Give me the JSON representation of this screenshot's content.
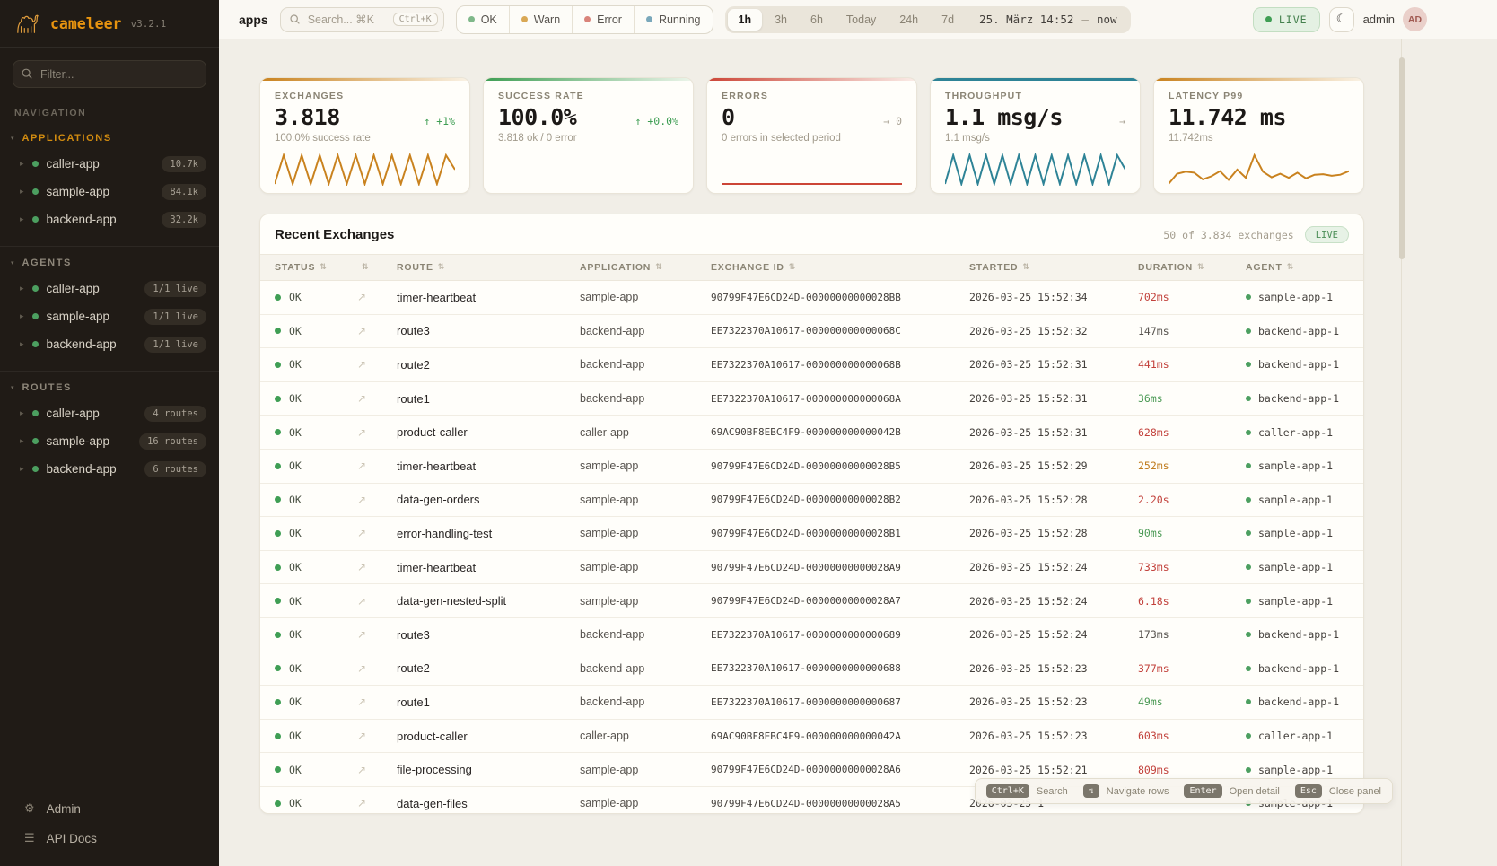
{
  "brand": {
    "name": "cameleer",
    "version": "v3.2.1"
  },
  "sidebar": {
    "filter_placeholder": "Filter...",
    "nav_label": "NAVIGATION",
    "sections": [
      {
        "title": "APPLICATIONS",
        "accent": true,
        "items": [
          {
            "label": "caller-app",
            "badge": "10.7k"
          },
          {
            "label": "sample-app",
            "badge": "84.1k"
          },
          {
            "label": "backend-app",
            "badge": "32.2k"
          }
        ]
      },
      {
        "title": "AGENTS",
        "accent": false,
        "items": [
          {
            "label": "caller-app",
            "badge": "1/1 live"
          },
          {
            "label": "sample-app",
            "badge": "1/1 live"
          },
          {
            "label": "backend-app",
            "badge": "1/1 live"
          }
        ]
      },
      {
        "title": "ROUTES",
        "accent": false,
        "items": [
          {
            "label": "caller-app",
            "badge": "4 routes"
          },
          {
            "label": "sample-app",
            "badge": "16 routes"
          },
          {
            "label": "backend-app",
            "badge": "6 routes"
          }
        ]
      }
    ],
    "footer": [
      {
        "label": "Admin",
        "icon": "gear-icon",
        "glyph": "⚙"
      },
      {
        "label": "API Docs",
        "icon": "docs-icon",
        "glyph": "☰"
      }
    ]
  },
  "topbar": {
    "context_label": "apps",
    "search": {
      "placeholder": "Search... ⌘K",
      "shortcut": "Ctrl+K"
    },
    "status_filters": [
      {
        "label": "OK",
        "color": "#7fb88a"
      },
      {
        "label": "Warn",
        "color": "#d9a855"
      },
      {
        "label": "Error",
        "color": "#d9837a"
      },
      {
        "label": "Running",
        "color": "#7aa8bb"
      }
    ],
    "time_ranges": [
      "1h",
      "3h",
      "6h",
      "Today",
      "24h",
      "7d"
    ],
    "active_range": "1h",
    "date_from": "25. März 14:52",
    "date_sep": "—",
    "date_to": "now",
    "live_label": "LIVE",
    "theme_icon": "☾",
    "user_name": "admin",
    "user_initials": "AD"
  },
  "stat_cards": [
    {
      "label": "EXCHANGES",
      "value": "3.818",
      "delta": "↑ +1%",
      "delta_color": "#3f9e54",
      "subtitle": "100.0% success rate",
      "accent": "#c9821e",
      "bar": "fade",
      "sparkline": [
        1,
        9,
        1,
        9,
        1,
        9,
        1,
        9,
        1,
        9,
        1,
        9,
        1,
        9,
        1,
        9,
        1,
        9,
        1,
        9,
        5
      ]
    },
    {
      "label": "SUCCESS RATE",
      "value": "100.0%",
      "delta": "↑ +0.0%",
      "delta_color": "#3f9e54",
      "subtitle": "3.818 ok / 0 error",
      "accent": "#3f9e54",
      "bar": "fade",
      "sparkline": null
    },
    {
      "label": "ERRORS",
      "value": "0",
      "delta": "→ 0",
      "delta_color": "#a8a193",
      "subtitle": "0 errors in selected period",
      "accent": "#cc4537",
      "bar": "fade",
      "sparkline": [
        0,
        0
      ]
    },
    {
      "label": "THROUGHPUT",
      "value": "1.1 msg/s",
      "delta": "→",
      "delta_color": "#a8a193",
      "subtitle": "1.1 msg/s",
      "accent": "#2e8396",
      "bar": "solid",
      "sparkline": [
        1,
        9,
        1,
        9,
        1,
        9,
        1,
        9,
        1,
        9,
        1,
        9,
        1,
        9,
        1,
        9,
        1,
        9,
        1,
        9,
        1,
        9,
        5
      ]
    },
    {
      "label": "LATENCY P99",
      "value": "11.742 ms",
      "delta": "",
      "delta_color": "#a8a193",
      "subtitle": "11.742ms",
      "accent": "#c9821e",
      "bar": "fade",
      "sparkline": [
        2.0,
        4.0,
        4.4,
        4.2,
        2.9,
        3.5,
        4.5,
        2.8,
        4.8,
        3.2,
        7.6,
        4.4,
        3.3,
        4.0,
        3.2,
        4.2,
        3.1,
        3.8,
        3.9,
        3.6,
        3.8,
        4.5
      ]
    }
  ],
  "table": {
    "title": "Recent Exchanges",
    "meta": "50 of 3.834 exchanges",
    "live_label": "LIVE",
    "columns": [
      "STATUS",
      "",
      "ROUTE",
      "APPLICATION",
      "EXCHANGE ID",
      "STARTED",
      "DURATION",
      "AGENT"
    ],
    "sort_glyph": "⇅",
    "trace_glyph": "↗",
    "duration_colors": {
      "bad": "#c2413b",
      "warn": "#c07c1f",
      "good": "#4b9a55",
      "neutral": "#57534e"
    },
    "rows": [
      {
        "status": "OK",
        "route": "timer-heartbeat",
        "application": "sample-app",
        "exchange_id": "90799F47E6CD24D-00000000000028BB",
        "started": "2026-03-25 15:52:34",
        "duration": "702ms",
        "duration_level": "bad",
        "agent": "sample-app-1"
      },
      {
        "status": "OK",
        "route": "route3",
        "application": "backend-app",
        "exchange_id": "EE7322370A10617-000000000000068C",
        "started": "2026-03-25 15:52:32",
        "duration": "147ms",
        "duration_level": "neutral",
        "agent": "backend-app-1"
      },
      {
        "status": "OK",
        "route": "route2",
        "application": "backend-app",
        "exchange_id": "EE7322370A10617-000000000000068B",
        "started": "2026-03-25 15:52:31",
        "duration": "441ms",
        "duration_level": "bad",
        "agent": "backend-app-1"
      },
      {
        "status": "OK",
        "route": "route1",
        "application": "backend-app",
        "exchange_id": "EE7322370A10617-000000000000068A",
        "started": "2026-03-25 15:52:31",
        "duration": "36ms",
        "duration_level": "good",
        "agent": "backend-app-1"
      },
      {
        "status": "OK",
        "route": "product-caller",
        "application": "caller-app",
        "exchange_id": "69AC90BF8EBC4F9-000000000000042B",
        "started": "2026-03-25 15:52:31",
        "duration": "628ms",
        "duration_level": "bad",
        "agent": "caller-app-1"
      },
      {
        "status": "OK",
        "route": "timer-heartbeat",
        "application": "sample-app",
        "exchange_id": "90799F47E6CD24D-00000000000028B5",
        "started": "2026-03-25 15:52:29",
        "duration": "252ms",
        "duration_level": "warn",
        "agent": "sample-app-1"
      },
      {
        "status": "OK",
        "route": "data-gen-orders",
        "application": "sample-app",
        "exchange_id": "90799F47E6CD24D-00000000000028B2",
        "started": "2026-03-25 15:52:28",
        "duration": "2.20s",
        "duration_level": "bad",
        "agent": "sample-app-1"
      },
      {
        "status": "OK",
        "route": "error-handling-test",
        "application": "sample-app",
        "exchange_id": "90799F47E6CD24D-00000000000028B1",
        "started": "2026-03-25 15:52:28",
        "duration": "90ms",
        "duration_level": "good",
        "agent": "sample-app-1"
      },
      {
        "status": "OK",
        "route": "timer-heartbeat",
        "application": "sample-app",
        "exchange_id": "90799F47E6CD24D-00000000000028A9",
        "started": "2026-03-25 15:52:24",
        "duration": "733ms",
        "duration_level": "bad",
        "agent": "sample-app-1"
      },
      {
        "status": "OK",
        "route": "data-gen-nested-split",
        "application": "sample-app",
        "exchange_id": "90799F47E6CD24D-00000000000028A7",
        "started": "2026-03-25 15:52:24",
        "duration": "6.18s",
        "duration_level": "bad",
        "agent": "sample-app-1"
      },
      {
        "status": "OK",
        "route": "route3",
        "application": "backend-app",
        "exchange_id": "EE7322370A10617-0000000000000689",
        "started": "2026-03-25 15:52:24",
        "duration": "173ms",
        "duration_level": "neutral",
        "agent": "backend-app-1"
      },
      {
        "status": "OK",
        "route": "route2",
        "application": "backend-app",
        "exchange_id": "EE7322370A10617-0000000000000688",
        "started": "2026-03-25 15:52:23",
        "duration": "377ms",
        "duration_level": "bad",
        "agent": "backend-app-1"
      },
      {
        "status": "OK",
        "route": "route1",
        "application": "backend-app",
        "exchange_id": "EE7322370A10617-0000000000000687",
        "started": "2026-03-25 15:52:23",
        "duration": "49ms",
        "duration_level": "good",
        "agent": "backend-app-1"
      },
      {
        "status": "OK",
        "route": "product-caller",
        "application": "caller-app",
        "exchange_id": "69AC90BF8EBC4F9-000000000000042A",
        "started": "2026-03-25 15:52:23",
        "duration": "603ms",
        "duration_level": "bad",
        "agent": "caller-app-1"
      },
      {
        "status": "OK",
        "route": "file-processing",
        "application": "sample-app",
        "exchange_id": "90799F47E6CD24D-00000000000028A6",
        "started": "2026-03-25 15:52:21",
        "duration": "809ms",
        "duration_level": "bad",
        "agent": "sample-app-1"
      },
      {
        "status": "OK",
        "route": "data-gen-files",
        "application": "sample-app",
        "exchange_id": "90799F47E6CD24D-00000000000028A5",
        "started": "2026-03-25 1",
        "duration": "",
        "duration_level": "neutral",
        "agent": "sample-app-1"
      }
    ]
  },
  "hints": [
    {
      "key": "Ctrl+K",
      "label": "Search"
    },
    {
      "key": "⇅",
      "label": "Navigate rows"
    },
    {
      "key": "Enter",
      "label": "Open detail"
    },
    {
      "key": "Esc",
      "label": "Close panel"
    }
  ]
}
